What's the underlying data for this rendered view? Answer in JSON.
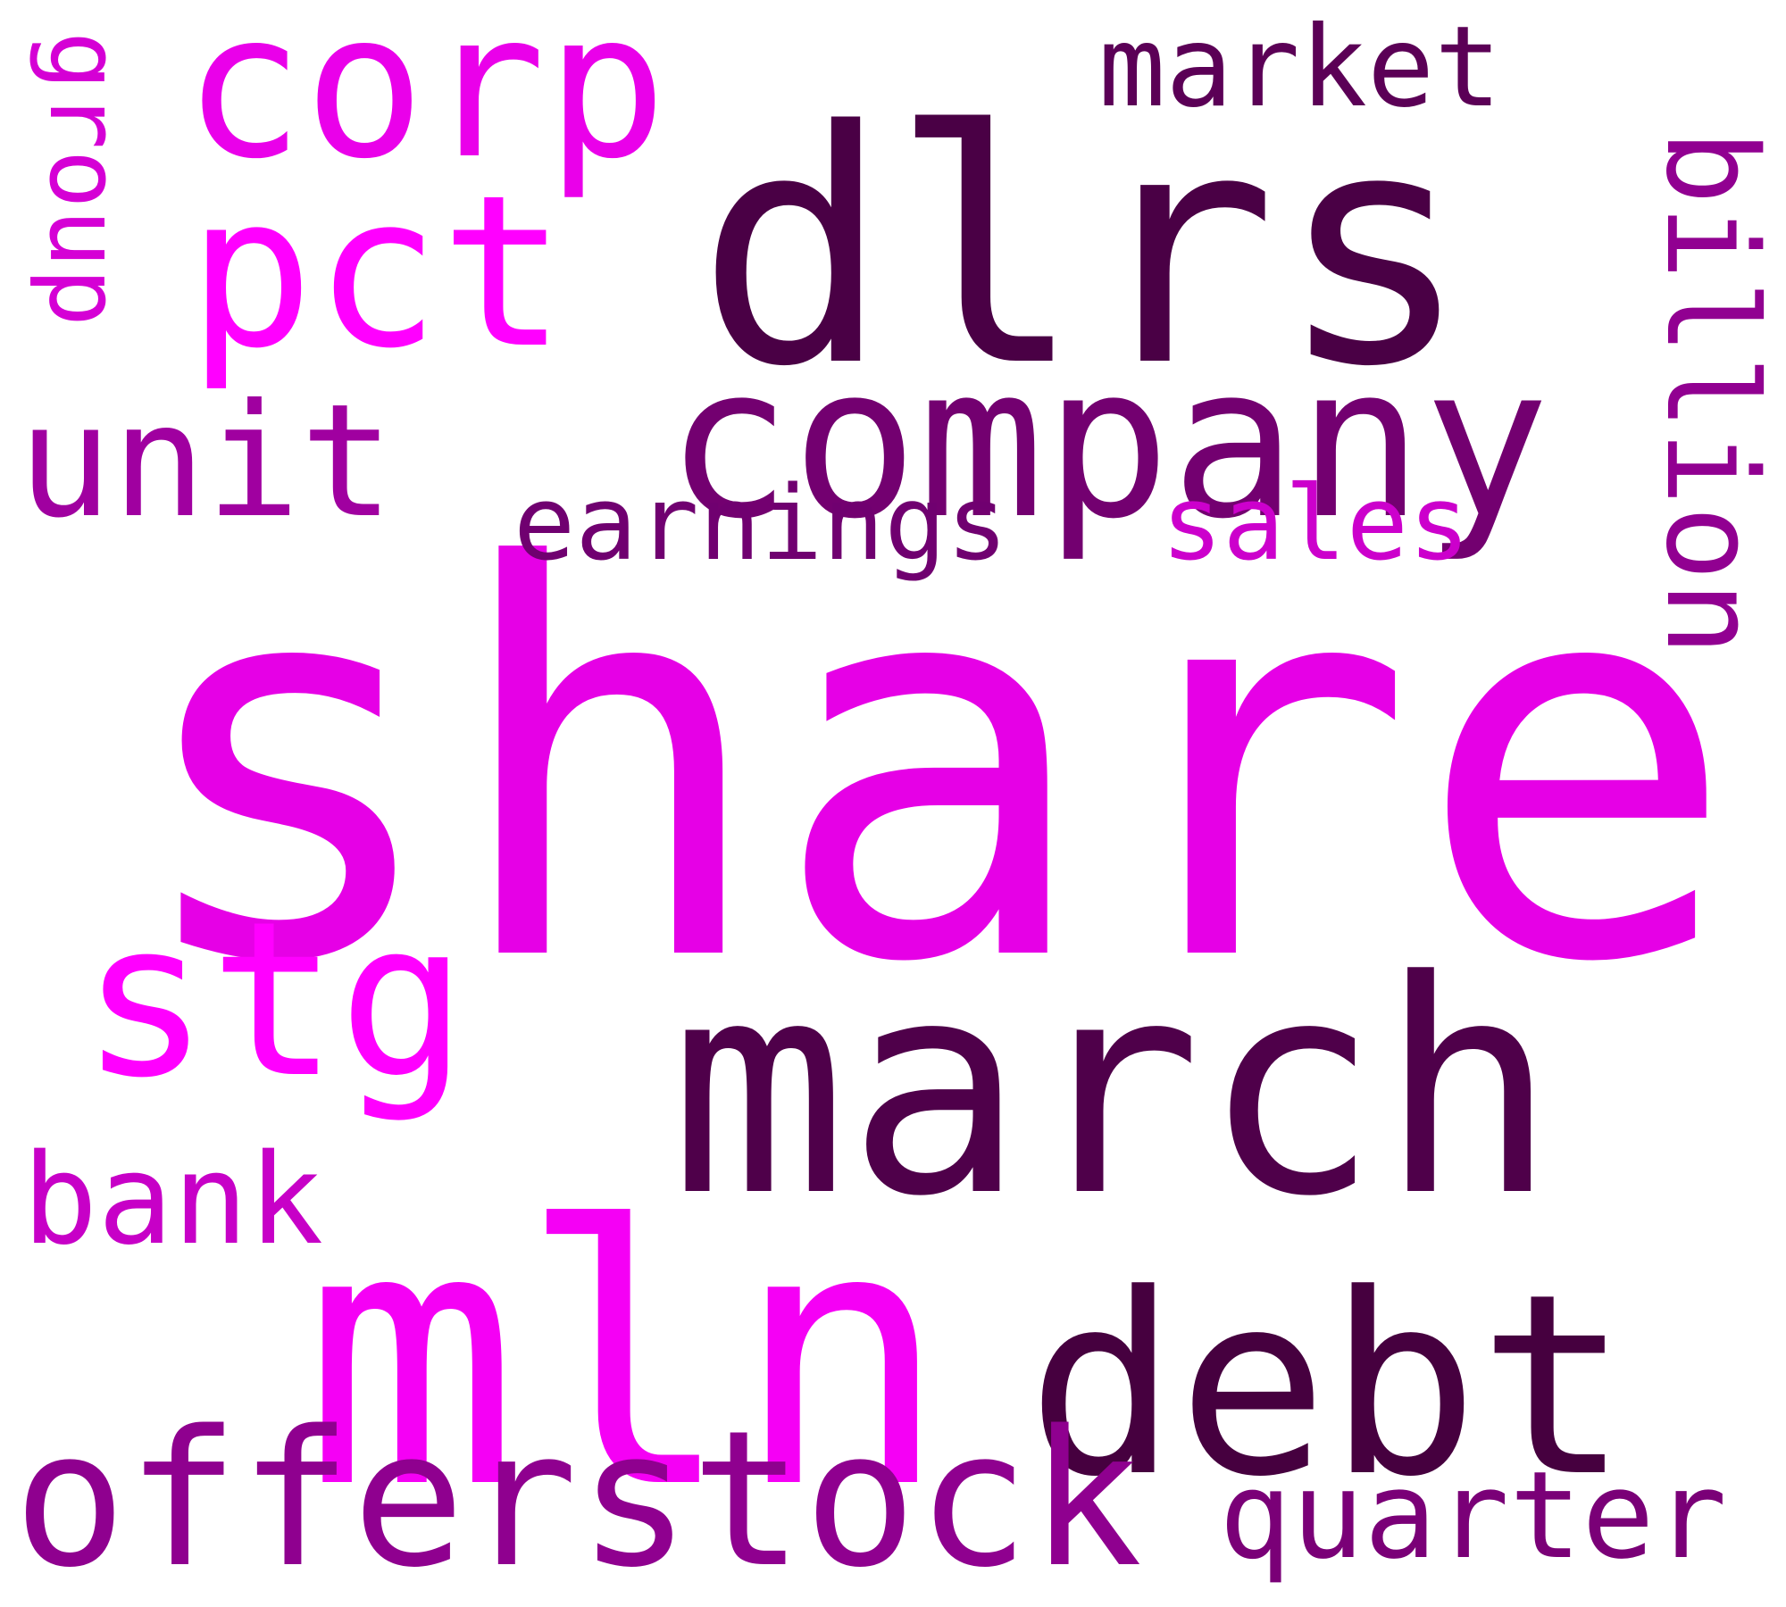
{
  "words": {
    "share": {
      "text": "share",
      "color": "#e600e6"
    },
    "dlrs": {
      "text": "dlrs",
      "color": "#4a0045"
    },
    "march": {
      "text": "march",
      "color": "#4f004a"
    },
    "mln": {
      "text": "mln",
      "color": "#f500f5"
    },
    "company": {
      "text": "company",
      "color": "#730070"
    },
    "debt": {
      "text": "debt",
      "color": "#46003f"
    },
    "offerstock": {
      "text": "offerstock",
      "color": "#8f008f"
    },
    "stg": {
      "text": "stg",
      "color": "#ff00ff"
    },
    "corp": {
      "text": "corp",
      "color": "#ea00ea"
    },
    "pct": {
      "text": "pct",
      "color": "#ff00ff"
    },
    "unit": {
      "text": "unit",
      "color": "#a000a0"
    },
    "earnings": {
      "text": "earnings",
      "color": "#700070"
    },
    "sales": {
      "text": "sales",
      "color": "#cc00cc"
    },
    "market": {
      "text": "market",
      "color": "#5b0056"
    },
    "quarter": {
      "text": "quarter",
      "color": "#7a0077"
    },
    "bank": {
      "text": "bank",
      "color": "#c700c7"
    },
    "billion": {
      "text": "billion",
      "color": "#910091"
    },
    "group": {
      "text": "group",
      "color": "#d500d5"
    }
  }
}
